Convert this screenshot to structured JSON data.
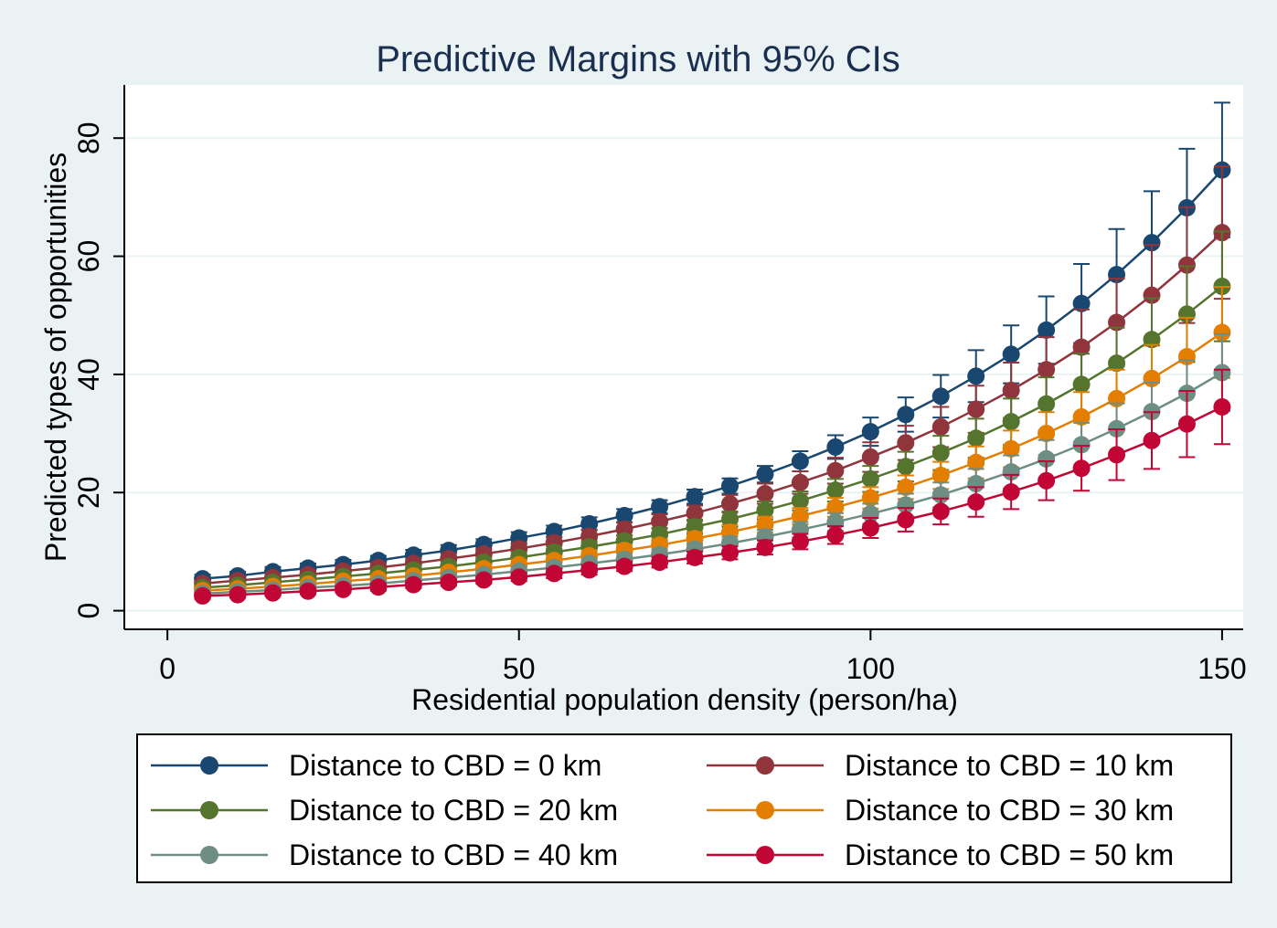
{
  "chart_data": {
    "type": "line",
    "title": "Predictive Margins with 95% CIs",
    "xlabel": "Residential population density (person/ha)",
    "ylabel": "Predicted types of opportunities",
    "xlim": [
      -6,
      153
    ],
    "ylim": [
      -3,
      89
    ],
    "x_ticks": [
      0,
      50,
      100,
      150
    ],
    "y_ticks": [
      0,
      20,
      40,
      60,
      80
    ],
    "grid": true,
    "error_bars": "95% confidence intervals",
    "legend_position": "bottom",
    "x": [
      5,
      10,
      15,
      20,
      25,
      30,
      35,
      40,
      45,
      50,
      55,
      60,
      65,
      70,
      75,
      80,
      85,
      90,
      95,
      100,
      105,
      110,
      115,
      120,
      125,
      130,
      135,
      140,
      145,
      150
    ],
    "series": [
      {
        "name": "Distance to CBD = 0 km",
        "color": "#1a476f",
        "values": [
          5.4,
          5.9,
          6.6,
          7.2,
          7.8,
          8.5,
          9.4,
          10.2,
          11.2,
          12.3,
          13.4,
          14.7,
          16.1,
          17.6,
          19.3,
          21.1,
          23.1,
          25.3,
          27.7,
          30.3,
          33.2,
          36.3,
          39.7,
          43.4,
          47.5,
          52.0,
          56.9,
          62.3,
          68.2,
          74.6
        ],
        "ci_low": [
          4.7,
          5.2,
          5.8,
          6.4,
          7.0,
          7.7,
          8.5,
          9.3,
          10.3,
          11.3,
          12.4,
          13.6,
          15.0,
          16.5,
          18.1,
          19.8,
          21.7,
          23.6,
          25.7,
          27.9,
          30.3,
          32.7,
          35.3,
          38.5,
          41.8,
          45.3,
          49.2,
          53.6,
          58.2,
          63.2
        ],
        "ci_high": [
          6.1,
          6.6,
          7.4,
          8.0,
          8.6,
          9.3,
          10.3,
          11.1,
          12.1,
          13.3,
          14.4,
          15.8,
          17.2,
          18.7,
          20.5,
          22.4,
          24.5,
          27.0,
          29.7,
          32.7,
          36.1,
          39.9,
          44.1,
          48.3,
          53.2,
          58.7,
          64.6,
          71.0,
          78.2,
          86.0
        ]
      },
      {
        "name": "Distance to CBD = 10 km",
        "color": "#90353b",
        "values": [
          4.6,
          5.1,
          5.6,
          6.1,
          6.7,
          7.3,
          8.0,
          8.8,
          9.6,
          10.5,
          11.5,
          12.6,
          13.8,
          15.1,
          16.5,
          18.1,
          19.8,
          21.7,
          23.7,
          26.0,
          28.4,
          31.1,
          34.1,
          37.3,
          40.8,
          44.6,
          48.8,
          53.4,
          58.5,
          64.0
        ],
        "ci_low": [
          4.0,
          4.4,
          4.9,
          5.4,
          5.9,
          6.5,
          7.2,
          7.9,
          8.7,
          9.5,
          10.5,
          11.5,
          12.7,
          13.9,
          15.2,
          16.6,
          18.1,
          19.8,
          21.5,
          23.5,
          25.5,
          27.7,
          30.1,
          32.6,
          35.3,
          38.2,
          41.4,
          44.9,
          48.7,
          52.8
        ],
        "ci_high": [
          5.2,
          5.8,
          6.3,
          6.8,
          7.5,
          8.1,
          8.8,
          9.7,
          10.5,
          11.5,
          12.5,
          13.7,
          14.9,
          16.3,
          17.8,
          19.6,
          21.5,
          23.6,
          25.9,
          28.5,
          31.3,
          34.5,
          38.1,
          42.0,
          46.3,
          51.0,
          56.2,
          61.9,
          68.3,
          75.2
        ]
      },
      {
        "name": "Distance to CBD = 20 km",
        "color": "#55752f",
        "values": [
          3.9,
          4.3,
          4.8,
          5.3,
          5.8,
          6.3,
          6.9,
          7.5,
          8.2,
          9.0,
          9.9,
          10.8,
          11.8,
          12.9,
          14.2,
          15.5,
          17.0,
          18.6,
          20.4,
          22.3,
          24.4,
          26.7,
          29.2,
          32.0,
          35.0,
          38.3,
          41.9,
          45.9,
          50.2,
          54.9
        ],
        "ci_low": [
          3.4,
          3.8,
          4.2,
          4.6,
          5.1,
          5.6,
          6.1,
          6.7,
          7.4,
          8.1,
          8.9,
          9.8,
          10.8,
          11.8,
          13.0,
          14.2,
          15.5,
          17.0,
          18.5,
          20.1,
          21.9,
          23.8,
          25.9,
          28.1,
          30.5,
          33.1,
          35.9,
          38.9,
          42.1,
          45.6
        ],
        "ci_high": [
          4.4,
          4.8,
          5.4,
          6.0,
          6.5,
          7.0,
          7.7,
          8.3,
          9.0,
          9.9,
          10.9,
          11.8,
          12.8,
          14.0,
          15.4,
          16.8,
          18.5,
          20.2,
          22.3,
          24.5,
          26.9,
          29.6,
          32.5,
          35.9,
          39.5,
          43.5,
          47.9,
          52.9,
          58.3,
          64.2
        ]
      },
      {
        "name": "Distance to CBD = 30 km",
        "color": "#e37e00",
        "values": [
          3.4,
          3.7,
          4.1,
          4.5,
          5.0,
          5.4,
          5.9,
          6.5,
          7.1,
          7.8,
          8.5,
          9.3,
          10.2,
          11.1,
          12.2,
          13.3,
          14.6,
          16.0,
          17.5,
          19.1,
          20.9,
          22.9,
          25.1,
          27.4,
          30.0,
          32.8,
          35.9,
          39.3,
          43.0,
          47.1
        ],
        "ci_low": [
          2.9,
          3.2,
          3.6,
          4.0,
          4.4,
          4.8,
          5.3,
          5.8,
          6.3,
          7.0,
          7.7,
          8.4,
          9.2,
          10.1,
          11.1,
          12.1,
          13.3,
          14.6,
          15.9,
          17.3,
          18.9,
          20.6,
          22.4,
          24.3,
          26.4,
          28.6,
          31.0,
          33.6,
          36.4,
          39.4
        ],
        "ci_high": [
          3.9,
          4.2,
          4.6,
          5.0,
          5.6,
          6.0,
          6.5,
          7.2,
          7.9,
          8.6,
          9.3,
          10.2,
          11.2,
          12.1,
          13.3,
          14.5,
          15.9,
          17.4,
          19.1,
          20.9,
          22.9,
          25.2,
          27.8,
          30.5,
          33.6,
          37.0,
          40.8,
          45.0,
          49.6,
          54.8
        ]
      },
      {
        "name": "Distance to CBD = 40 km",
        "color": "#6e8e84",
        "values": [
          2.9,
          3.2,
          3.5,
          3.9,
          4.2,
          4.6,
          5.1,
          5.6,
          6.1,
          6.7,
          7.3,
          8.0,
          8.7,
          9.5,
          10.4,
          11.4,
          12.5,
          13.7,
          15.0,
          16.4,
          17.9,
          19.6,
          21.5,
          23.5,
          25.7,
          28.1,
          30.8,
          33.7,
          36.8,
          40.3
        ],
        "ci_low": [
          2.5,
          2.7,
          3.0,
          3.4,
          3.7,
          4.1,
          4.5,
          4.9,
          5.4,
          6.0,
          6.5,
          7.2,
          7.8,
          8.6,
          9.4,
          10.3,
          11.3,
          12.4,
          13.5,
          14.7,
          16.0,
          17.5,
          19.0,
          20.7,
          22.5,
          24.4,
          26.5,
          28.8,
          31.2,
          33.8
        ],
        "ci_high": [
          3.3,
          3.7,
          4.0,
          4.4,
          4.7,
          5.1,
          5.7,
          6.3,
          6.8,
          7.4,
          8.1,
          8.8,
          9.6,
          10.4,
          11.4,
          12.5,
          13.7,
          15.0,
          16.5,
          18.1,
          19.8,
          21.7,
          24.0,
          26.3,
          28.9,
          31.8,
          35.1,
          38.6,
          42.4,
          46.8
        ]
      },
      {
        "name": "Distance to CBD = 50 km",
        "color": "#c10534",
        "values": [
          2.5,
          2.7,
          3.0,
          3.3,
          3.6,
          4.0,
          4.4,
          4.8,
          5.2,
          5.7,
          6.3,
          6.9,
          7.5,
          8.2,
          9.0,
          9.8,
          10.7,
          11.7,
          12.8,
          14.0,
          15.4,
          16.8,
          18.4,
          20.1,
          22.0,
          24.1,
          26.4,
          28.8,
          31.6,
          34.5
        ],
        "ci_low": [
          2.0,
          2.2,
          2.5,
          2.8,
          3.1,
          3.4,
          3.8,
          4.2,
          4.6,
          5.0,
          5.5,
          6.1,
          6.7,
          7.3,
          8.0,
          8.7,
          9.5,
          10.4,
          11.3,
          12.3,
          13.4,
          14.6,
          15.9,
          17.2,
          18.7,
          20.3,
          22.1,
          24.0,
          26.0,
          28.2
        ],
        "ci_high": [
          3.0,
          3.2,
          3.5,
          3.8,
          4.1,
          4.6,
          5.0,
          5.4,
          5.8,
          6.4,
          7.1,
          7.7,
          8.3,
          9.1,
          10.0,
          10.9,
          11.9,
          13.0,
          14.3,
          15.7,
          17.4,
          19.0,
          20.9,
          23.0,
          25.3,
          27.9,
          30.7,
          33.6,
          37.2,
          40.8
        ]
      }
    ]
  }
}
